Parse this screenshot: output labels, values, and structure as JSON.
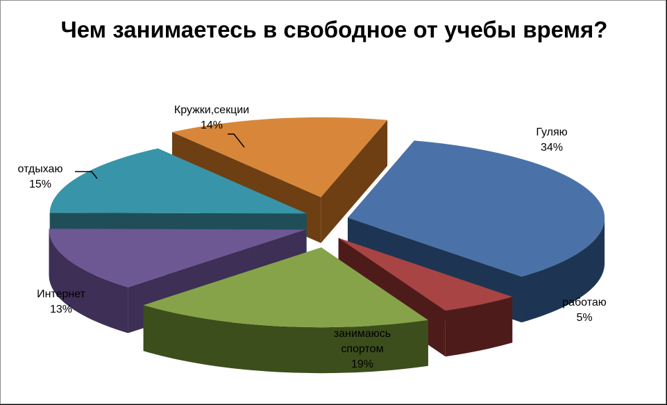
{
  "chart_data": {
    "type": "pie",
    "title": "Чем занимаетесь в свободное от учебы время?",
    "exploded_3d": true,
    "slices": [
      {
        "label": "Гуляю",
        "percent_text": "34%",
        "value": 34,
        "color": "#4A72A8",
        "side_color": "#1D3553"
      },
      {
        "label": "работаю",
        "percent_text": "5%",
        "value": 5,
        "color": "#A84444",
        "side_color": "#4E1B1B"
      },
      {
        "label": "занимаюсь спортом",
        "label_lines": [
          "занимаюсь",
          "спортом"
        ],
        "percent_text": "19%",
        "value": 19,
        "color": "#87A349",
        "side_color": "#3C4E1C"
      },
      {
        "label": "Интернет",
        "percent_text": "13%",
        "value": 13,
        "color": "#6E5894",
        "side_color": "#3D2F55"
      },
      {
        "label": "отдыхаю",
        "percent_text": "15%",
        "value": 15,
        "color": "#3894A8",
        "side_color": "#1F4E59"
      },
      {
        "label": "Кружки,секции",
        "percent_text": "14%",
        "value": 14,
        "color": "#D8873A",
        "side_color": "#6E3F13"
      }
    ]
  }
}
